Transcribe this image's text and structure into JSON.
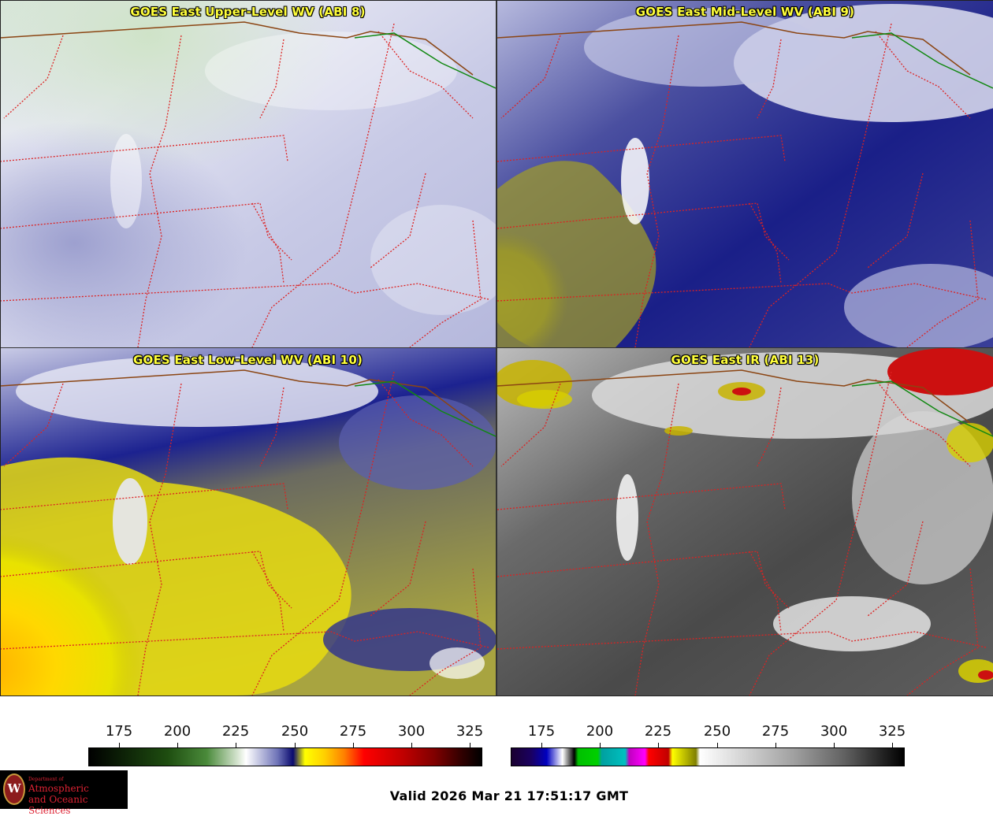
{
  "panels": [
    {
      "title": "GOES East Upper-Level WV (ABI 8)"
    },
    {
      "title": "GOES East Mid-Level WV (ABI 9)"
    },
    {
      "title": "GOES East Low-Level WV (ABI 10)"
    },
    {
      "title": "GOES East IR (ABI 13)"
    }
  ],
  "colorbars": {
    "left": {
      "ticks": [
        "175",
        "200",
        "225",
        "250",
        "275",
        "300",
        "325"
      ]
    },
    "right": {
      "ticks": [
        "175",
        "200",
        "225",
        "250",
        "275",
        "300",
        "325"
      ]
    }
  },
  "valid_time": "Valid 2026 Mar 21 17:51:17 GMT",
  "logo": {
    "dept": "Department of",
    "line1": "Atmospheric",
    "line2": "and Oceanic Sciences",
    "mark": "W"
  },
  "colors": {
    "title_text": "#ffff3a",
    "state_border": "#dd2222",
    "country_border": "#8b4513",
    "coast_line": "#118811"
  }
}
